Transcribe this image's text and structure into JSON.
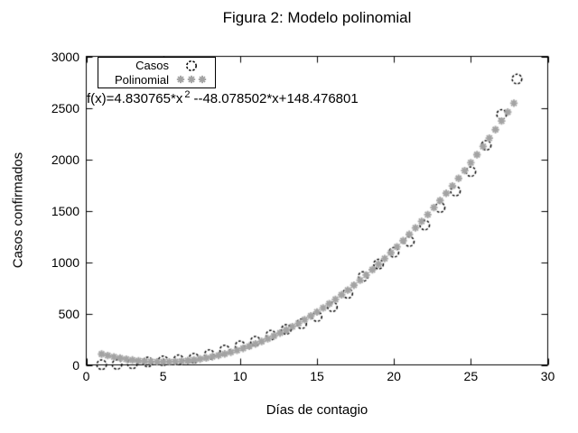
{
  "chart_data": {
    "type": "scatter",
    "title": "Figura 2: Modelo polinomial",
    "xlabel": "Días de contagio",
    "ylabel": "Casos confirmados",
    "xlim": [
      0,
      30
    ],
    "ylim": [
      0,
      3000
    ],
    "x_ticks": [
      0,
      5,
      10,
      15,
      20,
      25,
      30
    ],
    "y_ticks": [
      0,
      500,
      1000,
      1500,
      2000,
      2500,
      3000
    ],
    "grid": false,
    "legend_position": "top-left",
    "series": [
      {
        "name": "Casos",
        "marker": "open-circle",
        "color": "#000000",
        "x": [
          1,
          2,
          3,
          4,
          5,
          6,
          7,
          8,
          9,
          10,
          11,
          12,
          13,
          14,
          15,
          16,
          17,
          18,
          19,
          20,
          21,
          22,
          23,
          24,
          25,
          26,
          27,
          28
        ],
        "y": [
          2,
          5,
          10,
          28,
          40,
          50,
          65,
          100,
          145,
          185,
          230,
          290,
          345,
          400,
          470,
          565,
          695,
          860,
          980,
          1095,
          1200,
          1360,
          1530,
          1690,
          1880,
          2135,
          2435,
          2780
        ]
      },
      {
        "name": "Polinomial",
        "marker": "asterisk",
        "color": "#a3a3a3",
        "formula": "f(x)=4.830765*x^2-48.078502*x+148.476801",
        "x": [
          1,
          1.4,
          1.8,
          2.2,
          2.6,
          3,
          3.4,
          3.8,
          4.2,
          4.6,
          5,
          5.4,
          5.8,
          6.2,
          6.6,
          7,
          7.4,
          7.8,
          8.2,
          8.6,
          9,
          9.4,
          9.8,
          10.2,
          10.6,
          11,
          11.4,
          11.8,
          12.2,
          12.6,
          13,
          13.4,
          13.8,
          14.2,
          14.6,
          15,
          15.4,
          15.8,
          16.2,
          16.6,
          17,
          17.4,
          17.8,
          18.2,
          18.6,
          19,
          19.4,
          19.8,
          20.2,
          20.6,
          21,
          21.4,
          21.8,
          22.2,
          22.6,
          23,
          23.4,
          23.8,
          24.2,
          24.6,
          25,
          25.4,
          25.8,
          26.2,
          26.6,
          27,
          27.4,
          27.8
        ],
        "y": [
          105.2,
          90.6,
          77.6,
          66.1,
          56.1,
          47.7,
          40.9,
          35.5,
          31.8,
          29.5,
          28.9,
          29.7,
          32.1,
          36.1,
          41.6,
          48.6,
          57.2,
          67.4,
          79.1,
          92.3,
          107.1,
          123.4,
          141.3,
          160.7,
          181.6,
          204.1,
          228.2,
          253.8,
          280.9,
          309.6,
          339.9,
          371.6,
          405.0,
          439.8,
          476.3,
          514.2,
          553.7,
          594.8,
          637.4,
          681.5,
          727.2,
          774.5,
          823.3,
          873.6,
          925.5,
          978.9,
          1033.9,
          1090.4,
          1148.4,
          1208.0,
          1269.2,
          1331.9,
          1396.1,
          1461.9,
          1529.3,
          1598.1,
          1668.6,
          1740.5,
          1814.1,
          1889.1,
          1965.7,
          2043.9,
          2123.6,
          2204.9,
          2287.6,
          2372.0,
          2457.9,
          2545.3
        ]
      }
    ]
  },
  "formula": {
    "prefix": "f(x)=4.830765*x",
    "superscript": "2",
    "suffix": "--48.078502*x+148.476801"
  }
}
